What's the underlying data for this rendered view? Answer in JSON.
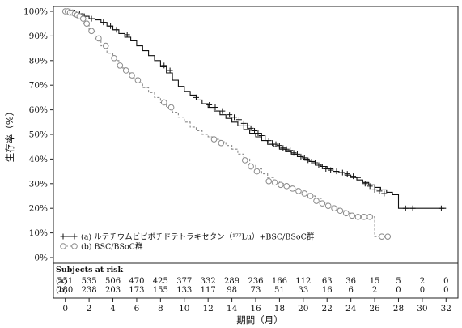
{
  "chart_data": {
    "type": "line",
    "subtype": "kaplan-meier",
    "ylabel": "生存率（%）",
    "xlabel": "期間（月）",
    "xlim": [
      -1,
      33
    ],
    "ylim": [
      0,
      100
    ],
    "xticks": [
      0,
      2,
      4,
      6,
      8,
      10,
      12,
      14,
      16,
      18,
      20,
      22,
      24,
      26,
      28,
      30,
      32
    ],
    "yticks": [
      0,
      10,
      20,
      30,
      40,
      50,
      60,
      70,
      80,
      90,
      100
    ],
    "ytick_labels": [
      "0%",
      "10%",
      "20%",
      "30%",
      "40%",
      "50%",
      "60%",
      "70%",
      "80%",
      "90%",
      "100%"
    ],
    "grid": false,
    "legend_position": "bottom-left",
    "series": [
      {
        "id": "a",
        "name": "(a)  ルテチウムビピボチドテトラキセタン（¹⁷⁷Lu）+BSC/BSoC群",
        "color": "#111111",
        "line_style": "solid",
        "censor_marker": "plus",
        "x": [
          0,
          0.5,
          1,
          1.5,
          2,
          2.5,
          3,
          3.5,
          4,
          4.5,
          5,
          5.5,
          6,
          6.5,
          7,
          7.5,
          8,
          8.5,
          9,
          9.5,
          10,
          10.5,
          11,
          11.5,
          12,
          12.5,
          13,
          13.5,
          14,
          14.5,
          15,
          15.5,
          16,
          16.5,
          17,
          17.5,
          18,
          18.5,
          19,
          19.5,
          20,
          20.5,
          21,
          21.5,
          22,
          22.5,
          23,
          23.5,
          24,
          24.5,
          25,
          25.5,
          26,
          26.5,
          27,
          27.5,
          28,
          32
        ],
        "y": [
          100,
          99.5,
          99,
          98,
          97,
          96.5,
          95.5,
          94,
          92.5,
          91,
          89.5,
          88,
          86,
          84,
          82,
          80,
          77.5,
          75,
          72,
          69.5,
          67.5,
          66,
          64,
          62.5,
          61,
          59.5,
          58,
          56.5,
          55,
          53.5,
          52,
          50.5,
          49,
          47.5,
          46,
          45,
          44,
          43,
          42,
          41,
          40,
          39,
          38,
          37,
          36,
          35,
          34.5,
          33.5,
          32.5,
          31.5,
          30.5,
          29.5,
          28.5,
          27.5,
          26.5,
          25.5,
          20,
          20
        ],
        "censor_x": [
          0.2,
          0.4,
          0.6,
          0.8,
          1.2,
          1.6,
          2.2,
          3.2,
          3.8,
          4.3,
          5.2,
          8.3,
          8.8,
          11,
          12.1,
          12.6,
          13.2,
          13.8,
          14.2,
          14.6,
          15,
          15.3,
          15.6,
          15.9,
          16.2,
          16.5,
          16.8,
          17.1,
          17.4,
          17.7,
          18,
          18.3,
          18.6,
          18.9,
          19.2,
          19.5,
          19.8,
          20.1,
          20.4,
          20.7,
          21,
          21.3,
          21.6,
          21.9,
          22.3,
          22.8,
          23.3,
          23.7,
          24.2,
          24.6,
          25.2,
          25.6,
          26,
          26.4,
          26.8,
          28.6,
          29.2,
          31.6
        ],
        "censor_y": [
          100,
          100,
          99.5,
          99.5,
          99,
          98,
          97,
          95.5,
          94,
          92.5,
          90.5,
          78,
          76,
          65,
          62,
          61,
          59.5,
          58,
          57,
          56,
          54.5,
          53.5,
          52.5,
          51.5,
          50.5,
          49.5,
          48.5,
          47.5,
          46.5,
          46,
          45.5,
          44.5,
          44,
          43.5,
          42.5,
          42,
          41,
          40.5,
          39.5,
          39,
          38.5,
          37.5,
          37,
          36,
          35.5,
          35,
          34.5,
          34,
          33,
          32.5,
          30,
          29,
          27.5,
          27,
          26,
          20,
          20,
          20
        ]
      },
      {
        "id": "b",
        "name": "(b)  BSC/BSoC群",
        "color": "#8a8a8a",
        "line_style": "dashed",
        "censor_marker": "circle",
        "x": [
          0,
          0.5,
          1,
          1.5,
          2,
          2.5,
          3,
          3.5,
          4,
          4.5,
          5,
          5.5,
          6,
          6.5,
          7,
          7.5,
          8,
          8.5,
          9,
          9.5,
          10,
          10.5,
          11,
          11.5,
          12,
          12.5,
          13,
          13.5,
          14,
          14.5,
          15,
          15.5,
          16,
          16.5,
          17,
          17.5,
          18,
          18.5,
          19,
          19.5,
          20,
          20.5,
          21,
          21.5,
          22,
          22.5,
          23,
          23.5,
          24,
          24.5,
          25,
          25.5,
          26,
          27
        ],
        "y": [
          100,
          99,
          98,
          95,
          92,
          89,
          86,
          83,
          80,
          77,
          75,
          73,
          71,
          69,
          67,
          65,
          63,
          61,
          59,
          57,
          55,
          53,
          51.5,
          50,
          49,
          48,
          47,
          45.5,
          44,
          42,
          40,
          38,
          36,
          34,
          32.5,
          31,
          30,
          29,
          28,
          27,
          26,
          25,
          24,
          22.5,
          21,
          20,
          19,
          18,
          17,
          16.5,
          16.5,
          16.5,
          8.5,
          8.5
        ],
        "censor_x": [
          0,
          0.2,
          0.4,
          0.6,
          0.8,
          1,
          1.2,
          1.5,
          1.8,
          2.2,
          2.8,
          3.4,
          4.1,
          4.6,
          5.1,
          5.6,
          6.1,
          8.3,
          8.9,
          12.5,
          13.1,
          15.1,
          15.6,
          16.1,
          17.1,
          17.6,
          18.1,
          18.6,
          19.1,
          19.6,
          20.1,
          20.6,
          21.1,
          21.6,
          22.1,
          22.6,
          23.1,
          23.6,
          24.1,
          24.6,
          25.1,
          25.6,
          26.6,
          27.1
        ],
        "censor_y": [
          100,
          100,
          99.5,
          99.5,
          99,
          98.5,
          98,
          97,
          95,
          92,
          89,
          86,
          81,
          78,
          76,
          74,
          72,
          63,
          61,
          48,
          46.5,
          39.5,
          37,
          35,
          31,
          30.5,
          29.5,
          29,
          28,
          27,
          26,
          25,
          23,
          22,
          21,
          20,
          19,
          18,
          17,
          16.5,
          16.5,
          16.5,
          8.5,
          8.5
        ]
      }
    ],
    "risk_table": {
      "title": "Subjects at risk",
      "times": [
        0,
        2,
        4,
        6,
        8,
        10,
        12,
        14,
        16,
        18,
        20,
        22,
        24,
        26,
        28,
        30,
        32
      ],
      "rows": [
        {
          "label": "(a)",
          "color": "#111111",
          "values": [
            "551",
            "535",
            "506",
            "470",
            "425",
            "377",
            "332",
            "289",
            "236",
            "166",
            "112",
            "63",
            "36",
            "15",
            "5",
            "2",
            "0"
          ]
        },
        {
          "label": "(b)",
          "color": "#555555",
          "values": [
            "280",
            "238",
            "203",
            "173",
            "155",
            "133",
            "117",
            "98",
            "73",
            "51",
            "33",
            "16",
            "6",
            "2",
            "0",
            "0",
            "0"
          ]
        }
      ]
    }
  }
}
